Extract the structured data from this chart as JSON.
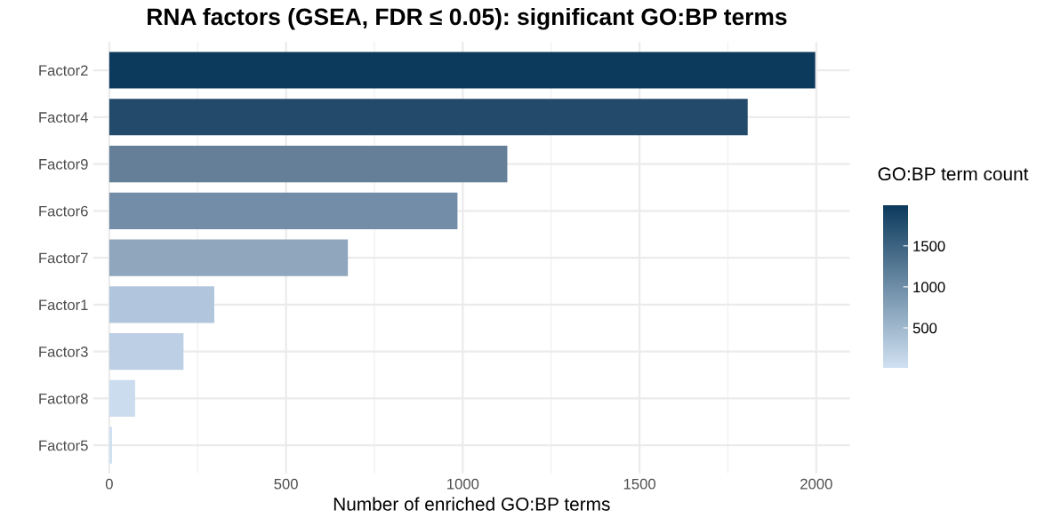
{
  "chart_data": {
    "type": "bar",
    "orientation": "horizontal",
    "title": "RNA factors (GSEA, FDR ≤ 0.05): significant GO:BP terms",
    "xlabel": "Number of enriched GO:BP terms",
    "clabel": "GO:BP term count",
    "categories": [
      "Factor2",
      "Factor4",
      "Factor9",
      "Factor6",
      "Factor7",
      "Factor1",
      "Factor3",
      "Factor8",
      "Factor5"
    ],
    "values": [
      1997,
      1806,
      1126,
      985,
      675,
      297,
      210,
      73,
      8
    ],
    "colors": [
      "#0c3a5c",
      "#234a6b",
      "#667f99",
      "#738ca7",
      "#8fa6bd",
      "#b1c6dc",
      "#bccfe4",
      "#cadcee",
      "#d0e1f2"
    ],
    "xlim": [
      -45,
      2095
    ],
    "xticks": [
      0,
      500,
      1000,
      1500,
      2000
    ],
    "clim": [
      8,
      1997
    ],
    "cticks": [
      500,
      1000,
      1500
    ],
    "grid": true
  }
}
